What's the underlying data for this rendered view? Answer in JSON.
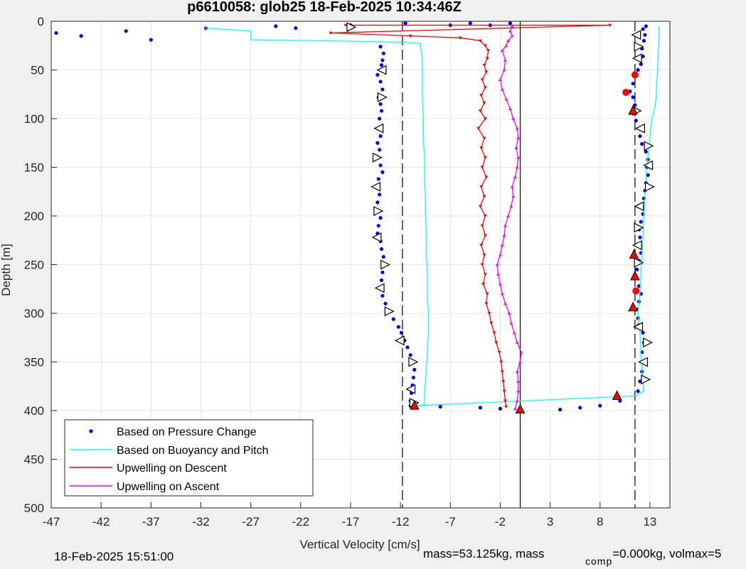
{
  "chart_data": {
    "type": "scatter",
    "title": "p6610058: glob25 18-Feb-2025 10:34:46Z",
    "xlabel": "Vertical Velocity [cm/s]",
    "ylabel": "Depth [m]",
    "xlim": [
      -47,
      15
    ],
    "ylim": [
      0,
      500
    ],
    "y_reversed": true,
    "xticks": [
      -47,
      -42,
      -37,
      -32,
      -27,
      -22,
      -17,
      -12,
      -7,
      -2,
      3,
      8,
      13
    ],
    "yticks": [
      0,
      50,
      100,
      150,
      200,
      250,
      300,
      350,
      400,
      450,
      500
    ],
    "grid": true,
    "legend_position": "bottom-left",
    "reference_lines": {
      "dashed_x": [
        -11.8,
        11.5
      ],
      "solid_x": [
        0
      ]
    },
    "series": [
      {
        "name": "Based on Pressure Change",
        "color": "#0000ff",
        "style": "dots",
        "descent": [
          [
            -46.5,
            12
          ],
          [
            -44,
            15
          ],
          [
            -39.5,
            10
          ],
          [
            -37,
            19
          ],
          [
            -31.5,
            7
          ],
          [
            -24.5,
            5
          ],
          [
            -22.5,
            7
          ],
          [
            -17,
            4
          ],
          [
            -11.5,
            2
          ],
          [
            -7,
            4
          ],
          [
            -5,
            2
          ],
          [
            -3,
            4
          ],
          [
            -1,
            2
          ],
          [
            -14,
            26
          ],
          [
            -13.7,
            33
          ],
          [
            -13.8,
            40
          ],
          [
            -13.9,
            45
          ],
          [
            -14,
            50
          ],
          [
            -14.3,
            55
          ],
          [
            -14,
            62
          ],
          [
            -13.8,
            70
          ],
          [
            -14.2,
            78
          ],
          [
            -14,
            85
          ],
          [
            -13.9,
            92
          ],
          [
            -14.1,
            100
          ],
          [
            -14.2,
            110
          ],
          [
            -14,
            118
          ],
          [
            -14.3,
            125
          ],
          [
            -14.1,
            132
          ],
          [
            -14.4,
            140
          ],
          [
            -14,
            148
          ],
          [
            -13.8,
            155
          ],
          [
            -14.2,
            162
          ],
          [
            -14.4,
            170
          ],
          [
            -14.1,
            178
          ],
          [
            -14.3,
            186
          ],
          [
            -14.2,
            195
          ],
          [
            -14,
            202
          ],
          [
            -14.2,
            210
          ],
          [
            -14.3,
            218
          ],
          [
            -14,
            226
          ],
          [
            -13.9,
            234
          ],
          [
            -13.7,
            242
          ],
          [
            -13.6,
            250
          ],
          [
            -13.8,
            258
          ],
          [
            -13.9,
            266
          ],
          [
            -14,
            274
          ],
          [
            -13.8,
            282
          ],
          [
            -13.5,
            290
          ],
          [
            -13.1,
            298
          ],
          [
            -12.7,
            306
          ],
          [
            -12.2,
            314
          ],
          [
            -11.9,
            320
          ],
          [
            -11.6,
            328
          ],
          [
            -11.3,
            335
          ],
          [
            -11,
            343
          ],
          [
            -10.8,
            350
          ],
          [
            -10.6,
            358
          ],
          [
            -10.7,
            366
          ],
          [
            -10.8,
            374
          ],
          [
            -10.9,
            382
          ],
          [
            -11,
            390
          ],
          [
            -11,
            395
          ],
          [
            -8,
            396
          ],
          [
            -4,
            397
          ],
          [
            -2,
            398
          ],
          [
            0,
            400
          ],
          [
            4,
            399
          ],
          [
            6,
            397
          ],
          [
            8,
            395
          ],
          [
            10,
            390
          ],
          [
            11.8,
            380
          ],
          [
            12,
            370
          ],
          [
            12.2,
            360
          ],
          [
            12.3,
            350
          ],
          [
            12.2,
            340
          ],
          [
            12.4,
            330
          ],
          [
            12.3,
            320
          ],
          [
            11.9,
            312
          ],
          [
            11.8,
            305
          ],
          [
            11.7,
            296
          ],
          [
            11.9,
            288
          ],
          [
            12.1,
            280
          ],
          [
            11.9,
            272
          ],
          [
            11.7,
            264
          ],
          [
            11.7,
            255
          ],
          [
            11.9,
            246
          ],
          [
            12.1,
            238
          ],
          [
            11.9,
            230
          ],
          [
            12,
            222
          ],
          [
            11.9,
            214
          ],
          [
            12.1,
            206
          ],
          [
            12.3,
            198
          ],
          [
            12,
            190
          ],
          [
            12.4,
            182
          ],
          [
            12.5,
            174
          ],
          [
            12.6,
            166
          ],
          [
            12.8,
            158
          ],
          [
            12.7,
            150
          ],
          [
            12.8,
            142
          ],
          [
            12.6,
            134
          ],
          [
            12.2,
            126
          ],
          [
            12,
            118
          ],
          [
            12,
            110
          ],
          [
            11.6,
            102
          ],
          [
            11.4,
            94
          ],
          [
            11.5,
            86
          ],
          [
            11.3,
            78
          ],
          [
            11,
            72
          ],
          [
            11.3,
            64
          ],
          [
            11.5,
            56
          ],
          [
            11.8,
            50
          ],
          [
            12.1,
            44
          ],
          [
            12.3,
            36
          ],
          [
            12.2,
            28
          ],
          [
            12.4,
            20
          ],
          [
            12.5,
            14
          ],
          [
            12.3,
            8
          ],
          [
            12.6,
            5
          ]
        ]
      },
      {
        "name": "Based on Buoyancy and Pitch",
        "color": "#00ffff",
        "style": "line",
        "points": [
          [
            -31.5,
            5
          ],
          [
            -31.5,
            7
          ],
          [
            -27,
            10
          ],
          [
            -27,
            19
          ],
          [
            -20,
            20
          ],
          [
            -14,
            21
          ],
          [
            -11,
            22
          ],
          [
            -10,
            23
          ],
          [
            -9.8,
            40
          ],
          [
            -9.8,
            60
          ],
          [
            -9.8,
            80
          ],
          [
            -9.7,
            100
          ],
          [
            -9.7,
            120
          ],
          [
            -9.6,
            140
          ],
          [
            -9.6,
            160
          ],
          [
            -9.5,
            180
          ],
          [
            -9.5,
            200
          ],
          [
            -9.4,
            220
          ],
          [
            -9.4,
            240
          ],
          [
            -9.3,
            260
          ],
          [
            -9.3,
            280
          ],
          [
            -9.2,
            300
          ],
          [
            -9.2,
            320
          ],
          [
            -9.3,
            340
          ],
          [
            -9.4,
            355
          ],
          [
            -9.5,
            370
          ],
          [
            -9.6,
            385
          ],
          [
            -9.6,
            394
          ],
          [
            -10.5,
            395
          ],
          [
            11.5,
            385
          ],
          [
            12.4,
            380
          ],
          [
            12.2,
            360
          ],
          [
            12.1,
            340
          ],
          [
            12,
            320
          ],
          [
            11.8,
            300
          ],
          [
            12,
            280
          ],
          [
            12.1,
            260
          ],
          [
            12.2,
            240
          ],
          [
            12.3,
            220
          ],
          [
            12.4,
            200
          ],
          [
            12.5,
            180
          ],
          [
            12.6,
            160
          ],
          [
            12.8,
            140
          ],
          [
            13,
            120
          ],
          [
            13.2,
            100
          ],
          [
            13.5,
            88
          ],
          [
            13.6,
            80
          ],
          [
            13.7,
            60
          ],
          [
            13.8,
            40
          ],
          [
            13.9,
            20
          ],
          [
            13.9,
            5
          ]
        ]
      },
      {
        "name": "Upwelling on Descent",
        "color": "#ff0000",
        "style": "line-triangles-down",
        "points": [
          [
            -17.5,
            4
          ],
          [
            9,
            4
          ],
          [
            -19,
            12
          ],
          [
            -11,
            15
          ],
          [
            -6,
            17
          ],
          [
            -4,
            20
          ],
          [
            -3.5,
            25
          ],
          [
            -3.2,
            30
          ],
          [
            -3.3,
            38
          ],
          [
            -3.6,
            45
          ],
          [
            -3.4,
            52
          ],
          [
            -3.8,
            60
          ],
          [
            -3.5,
            68
          ],
          [
            -3.9,
            76
          ],
          [
            -3.6,
            84
          ],
          [
            -4,
            92
          ],
          [
            -3.5,
            100
          ],
          [
            -4.2,
            110
          ],
          [
            -3.6,
            120
          ],
          [
            -3.9,
            130
          ],
          [
            -3.5,
            140
          ],
          [
            -3.8,
            150
          ],
          [
            -3.4,
            160
          ],
          [
            -3.9,
            170
          ],
          [
            -3.6,
            180
          ],
          [
            -4,
            190
          ],
          [
            -3.5,
            200
          ],
          [
            -3.8,
            210
          ],
          [
            -3.5,
            220
          ],
          [
            -3.9,
            230
          ],
          [
            -3.6,
            240
          ],
          [
            -3.8,
            250
          ],
          [
            -3.5,
            260
          ],
          [
            -3.7,
            270
          ],
          [
            -3.3,
            280
          ],
          [
            -3.4,
            290
          ],
          [
            -3.1,
            300
          ],
          [
            -2.9,
            310
          ],
          [
            -2.6,
            320
          ],
          [
            -2.4,
            330
          ],
          [
            -2.1,
            340
          ],
          [
            -1.9,
            350
          ],
          [
            -1.8,
            360
          ],
          [
            -1.7,
            370
          ],
          [
            -1.6,
            380
          ],
          [
            -1.5,
            390
          ],
          [
            -1.4,
            396
          ]
        ]
      },
      {
        "name": "Upwelling on Ascent",
        "color": "#ff00ff",
        "style": "line-triangles-up",
        "points": [
          [
            -0.5,
            398
          ],
          [
            -0.3,
            390
          ],
          [
            -0.2,
            380
          ],
          [
            -0.2,
            370
          ],
          [
            -0.3,
            360
          ],
          [
            0,
            350
          ],
          [
            0.1,
            340
          ],
          [
            -0.3,
            330
          ],
          [
            -0.6,
            320
          ],
          [
            -0.9,
            310
          ],
          [
            -1.1,
            300
          ],
          [
            -1.5,
            290
          ],
          [
            -1.8,
            280
          ],
          [
            -2,
            270
          ],
          [
            -2.2,
            260
          ],
          [
            -2.3,
            250
          ],
          [
            -2,
            240
          ],
          [
            -1.8,
            230
          ],
          [
            -1.6,
            220
          ],
          [
            -1.5,
            210
          ],
          [
            -1.2,
            200
          ],
          [
            -0.9,
            190
          ],
          [
            -0.7,
            180
          ],
          [
            -0.8,
            170
          ],
          [
            -0.5,
            160
          ],
          [
            -0.3,
            150
          ],
          [
            -0.2,
            140
          ],
          [
            -0.4,
            130
          ],
          [
            -0.2,
            120
          ],
          [
            -0.3,
            110
          ],
          [
            -0.7,
            100
          ],
          [
            -1,
            90
          ],
          [
            -1.4,
            80
          ],
          [
            -1.8,
            70
          ],
          [
            -2,
            60
          ],
          [
            -1.6,
            50
          ],
          [
            -1.5,
            40
          ],
          [
            -1.8,
            30
          ],
          [
            -1.4,
            25
          ],
          [
            -1.2,
            20
          ],
          [
            -0.8,
            15
          ],
          [
            -1,
            10
          ],
          [
            -0.8,
            5
          ]
        ]
      }
    ],
    "markers": {
      "black_open_triangles": [
        [
          -17,
          6
        ],
        [
          -13.8,
          50
        ],
        [
          -13.9,
          78
        ],
        [
          -14.1,
          110
        ],
        [
          -14.4,
          140
        ],
        [
          -14.4,
          170
        ],
        [
          -14.3,
          195
        ],
        [
          -14.3,
          222
        ],
        [
          -13.6,
          250
        ],
        [
          -14,
          274
        ],
        [
          -13.2,
          298
        ],
        [
          -12,
          328
        ],
        [
          -10.8,
          350
        ],
        [
          -10.9,
          378
        ],
        [
          -10.7,
          392
        ],
        [
          11.7,
          14
        ],
        [
          11.8,
          26
        ],
        [
          11.8,
          38
        ],
        [
          11.6,
          92
        ],
        [
          12.1,
          110
        ],
        [
          12.8,
          128
        ],
        [
          12.9,
          148
        ],
        [
          12.9,
          170
        ],
        [
          12,
          190
        ],
        [
          11.8,
          212
        ],
        [
          11.8,
          230
        ],
        [
          11.8,
          248
        ],
        [
          11.9,
          314
        ],
        [
          12.7,
          330
        ],
        [
          12.4,
          350
        ],
        [
          12.5,
          368
        ]
      ],
      "red_triangles_up": [
        [
          -10.6,
          395
        ],
        [
          9.7,
          385
        ],
        [
          0,
          399
        ],
        [
          11.3,
          92
        ],
        [
          11.4,
          240
        ],
        [
          11.5,
          262
        ],
        [
          11.3,
          294
        ]
      ],
      "red_dots": [
        [
          11.5,
          55
        ],
        [
          10.6,
          73
        ],
        [
          11.6,
          277
        ]
      ]
    }
  },
  "footer": {
    "timestamp": "18-Feb-2025 15:51:00",
    "mass_text": "mass=53.125kg, mass",
    "comp_subscript": "comp",
    "comp_text": "=0.000kg, volmax=5"
  }
}
